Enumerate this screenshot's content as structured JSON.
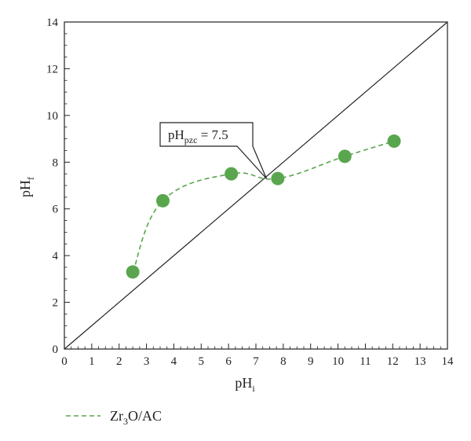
{
  "chart_data": {
    "type": "scatter",
    "xlabel_main": "pH",
    "xlabel_sub": "i",
    "ylabel_main": "pH",
    "ylabel_sub": "f",
    "xlim": [
      0,
      14
    ],
    "ylim": [
      0,
      14
    ],
    "x_ticks": [
      "0",
      "1",
      "2",
      "3",
      "4",
      "5",
      "6",
      "7",
      "8",
      "9",
      "10",
      "11",
      "12",
      "13",
      "14"
    ],
    "y_ticks": [
      "0",
      "2",
      "4",
      "6",
      "8",
      "10",
      "12",
      "14"
    ],
    "grid": false,
    "legend_position": "bottom-left",
    "series": [
      {
        "name_main": "Zr",
        "name_sub": "3",
        "name_rest": "O/AC",
        "color": "#5aa64f",
        "line_style": "dashed",
        "x": [
          2.5,
          3.6,
          6.1,
          7.8,
          10.25,
          12.05
        ],
        "y": [
          3.3,
          6.35,
          7.5,
          7.3,
          8.25,
          8.9
        ]
      }
    ],
    "reference_line": {
      "x": [
        0,
        14
      ],
      "y": [
        0,
        14
      ]
    },
    "annotation": {
      "prefix": "pH",
      "sub": "pzc",
      "suffix": " = 7.5",
      "x": 7.5,
      "y": 7.5
    }
  }
}
